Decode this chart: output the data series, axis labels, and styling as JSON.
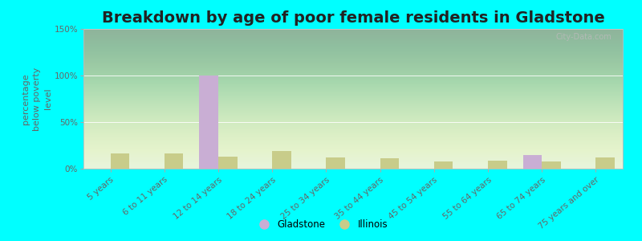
{
  "title": "Breakdown by age of poor female residents in Gladstone",
  "ylabel": "percentage\nbelow poverty\nlevel",
  "categories": [
    "5 years",
    "6 to 11 years",
    "12 to 14 years",
    "18 to 24 years",
    "25 to 34 years",
    "35 to 44 years",
    "45 to 54 years",
    "55 to 64 years",
    "65 to 74 years",
    "75 years and over"
  ],
  "gladstone_values": [
    0,
    0,
    100,
    0,
    0,
    0,
    0,
    0,
    15,
    0
  ],
  "illinois_values": [
    16,
    16,
    13,
    19,
    12,
    11,
    8,
    9,
    8,
    12
  ],
  "gladstone_color": "#c9aed4",
  "illinois_color": "#c8cc8a",
  "bar_width": 0.35,
  "ylim": [
    0,
    150
  ],
  "yticks": [
    0,
    50,
    100,
    150
  ],
  "ytick_labels": [
    "0%",
    "50%",
    "100%",
    "150%"
  ],
  "outer_background": "#00ffff",
  "plot_bg_bottom": "#dcefd8",
  "title_fontsize": 14,
  "axis_label_fontsize": 8,
  "tick_fontsize": 7.5,
  "legend_labels": [
    "Gladstone",
    "Illinois"
  ],
  "watermark": "City-Data.com"
}
